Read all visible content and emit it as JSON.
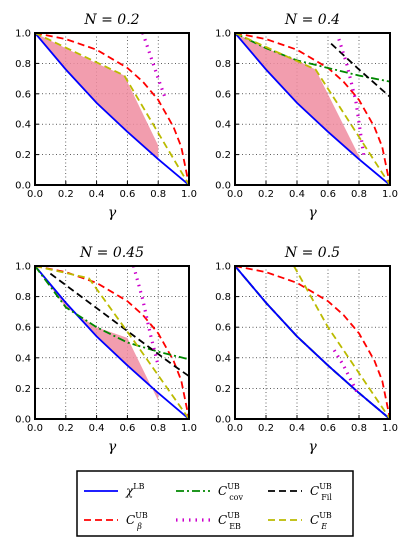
{
  "chart_data": [
    {
      "type": "line",
      "title": "N = 0.2",
      "xlabel": "γ",
      "xlim": [
        0,
        1
      ],
      "ylim": [
        0,
        1
      ],
      "xticks": [
        "0.0",
        "0.2",
        "0.4",
        "0.6",
        "0.8",
        "1.0"
      ],
      "yticks": [
        "0.0",
        "0.2",
        "0.4",
        "0.6",
        "0.8",
        "1.0"
      ],
      "grid": true,
      "series": [
        {
          "name": "χ^LB",
          "color": "#0000ff",
          "dash": "solid",
          "x": [
            0,
            0.2,
            0.4,
            0.6,
            0.8,
            1.0
          ],
          "y": [
            1.0,
            0.76,
            0.54,
            0.35,
            0.17,
            0.0
          ]
        },
        {
          "name": "C_β^UB",
          "color": "#ff0000",
          "dash": "dashed",
          "x": [
            0,
            0.2,
            0.4,
            0.6,
            0.7,
            0.8,
            0.9,
            0.95,
            1.0
          ],
          "y": [
            1.0,
            0.96,
            0.89,
            0.77,
            0.68,
            0.56,
            0.38,
            0.25,
            0.0
          ]
        },
        {
          "name": "C_EB^UB",
          "color": "#cc00cc",
          "dash": "dotted",
          "x": [
            0.7,
            0.75,
            0.8,
            0.85
          ],
          "y": [
            1.0,
            0.85,
            0.7,
            0.56
          ]
        },
        {
          "name": "C_E^UB",
          "color": "#bbbb00",
          "dash": "dashed",
          "x": [
            0.0,
            0.58,
            1.0
          ],
          "y": [
            1.0,
            0.72,
            0.0
          ]
        }
      ],
      "shaded": {
        "color": "#f08ca0",
        "upper_x": [
          0,
          0.2,
          0.4,
          0.58,
          0.8
        ],
        "upper_y": [
          1.0,
          0.9,
          0.8,
          0.72,
          0.26
        ]
      }
    },
    {
      "type": "line",
      "title": "N = 0.4",
      "xlabel": "γ",
      "xlim": [
        0,
        1
      ],
      "ylim": [
        0,
        1
      ],
      "xticks": [
        "0.0",
        "0.2",
        "0.4",
        "0.6",
        "0.8",
        "1.0"
      ],
      "yticks": [
        "0.0",
        "0.2",
        "0.4",
        "0.6",
        "0.8",
        "1.0"
      ],
      "grid": true,
      "series": [
        {
          "name": "χ^LB",
          "color": "#0000ff",
          "dash": "solid",
          "x": [
            0,
            0.2,
            0.4,
            0.6,
            0.8,
            1.0
          ],
          "y": [
            1.0,
            0.76,
            0.54,
            0.35,
            0.17,
            0.0
          ]
        },
        {
          "name": "C_β^UB",
          "color": "#ff0000",
          "dash": "dashed",
          "x": [
            0,
            0.2,
            0.4,
            0.6,
            0.7,
            0.8,
            0.9,
            0.95,
            1.0
          ],
          "y": [
            1.0,
            0.96,
            0.89,
            0.77,
            0.68,
            0.56,
            0.38,
            0.25,
            0.0
          ]
        },
        {
          "name": "C_cov^UB",
          "color": "#008800",
          "dash": "dashdot",
          "x": [
            0,
            0.2,
            0.4,
            0.6,
            0.8,
            1.0
          ],
          "y": [
            1.0,
            0.9,
            0.82,
            0.77,
            0.72,
            0.68
          ]
        },
        {
          "name": "C_Fil^UB",
          "color": "#000000",
          "dash": "dashed",
          "x": [
            0.62,
            0.8,
            1.0
          ],
          "y": [
            0.93,
            0.76,
            0.58
          ]
        },
        {
          "name": "C_EB^UB",
          "color": "#cc00cc",
          "dash": "dotted",
          "x": [
            0.67,
            0.72,
            0.78,
            0.83
          ],
          "y": [
            0.96,
            0.8,
            0.55,
            0.2
          ]
        },
        {
          "name": "C_E^UB",
          "color": "#bbbb00",
          "dash": "dashed",
          "x": [
            0.0,
            0.52,
            1.0
          ],
          "y": [
            1.0,
            0.76,
            0.0
          ]
        }
      ],
      "shaded": {
        "color": "#f08ca0",
        "upper_x": [
          0,
          0.2,
          0.4,
          0.52,
          0.82
        ],
        "upper_y": [
          1.0,
          0.9,
          0.82,
          0.76,
          0.15
        ]
      }
    },
    {
      "type": "line",
      "title": "N = 0.45",
      "xlabel": "γ",
      "xlim": [
        0,
        1
      ],
      "ylim": [
        0,
        1
      ],
      "xticks": [
        "0.0",
        "0.2",
        "0.4",
        "0.6",
        "0.8",
        "1.0"
      ],
      "yticks": [
        "0.0",
        "0.2",
        "0.4",
        "0.6",
        "0.8",
        "1.0"
      ],
      "grid": true,
      "series": [
        {
          "name": "χ^LB",
          "color": "#0000ff",
          "dash": "solid",
          "x": [
            0,
            0.2,
            0.4,
            0.6,
            0.8,
            1.0
          ],
          "y": [
            1.0,
            0.76,
            0.54,
            0.35,
            0.17,
            0.0
          ]
        },
        {
          "name": "C_β^UB",
          "color": "#ff0000",
          "dash": "dashed",
          "x": [
            0,
            0.2,
            0.4,
            0.6,
            0.7,
            0.8,
            0.9,
            0.95,
            1.0
          ],
          "y": [
            1.0,
            0.96,
            0.89,
            0.77,
            0.68,
            0.56,
            0.38,
            0.25,
            0.0
          ]
        },
        {
          "name": "C_cov^UB",
          "color": "#008800",
          "dash": "dashdot",
          "x": [
            0,
            0.2,
            0.4,
            0.6,
            0.8,
            1.0
          ],
          "y": [
            1.0,
            0.73,
            0.6,
            0.5,
            0.44,
            0.39
          ]
        },
        {
          "name": "C_Fil^UB",
          "color": "#000000",
          "dash": "dashed",
          "x": [
            0.1,
            0.3,
            0.5,
            0.7,
            0.9,
            1.0
          ],
          "y": [
            0.95,
            0.8,
            0.65,
            0.5,
            0.35,
            0.28
          ]
        },
        {
          "name": "C_EB^UB",
          "color": "#cc00cc",
          "dash": "dotted",
          "x": [
            0.64,
            0.7,
            0.75,
            0.8
          ],
          "y": [
            1.0,
            0.78,
            0.55,
            0.35
          ]
        },
        {
          "name": "C_E^UB",
          "color": "#bbbb00",
          "dash": "dashed",
          "x": [
            0.0,
            0.35,
            0.65,
            1.0
          ],
          "y": [
            1.0,
            0.92,
            0.5,
            0.0
          ]
        }
      ],
      "shaded": {
        "color": "#f08ca0",
        "upper_x": [
          0,
          0.2,
          0.4,
          0.6,
          0.8
        ],
        "upper_y": [
          1.0,
          0.73,
          0.6,
          0.53,
          0.12
        ]
      }
    },
    {
      "type": "line",
      "title": "N = 0.5",
      "xlabel": "γ",
      "xlim": [
        0,
        1
      ],
      "ylim": [
        0,
        1
      ],
      "xticks": [
        "0.0",
        "0.2",
        "0.4",
        "0.6",
        "0.8",
        "1.0"
      ],
      "yticks": [
        "0.0",
        "0.2",
        "0.4",
        "0.6",
        "0.8",
        "1.0"
      ],
      "grid": true,
      "series": [
        {
          "name": "C_Fil^UB",
          "color": "#000000",
          "dash": "dashed",
          "x": [
            0,
            0.2,
            0.4,
            0.6,
            0.8,
            1.0
          ],
          "y": [
            1.0,
            0.76,
            0.54,
            0.35,
            0.17,
            0.0
          ]
        },
        {
          "name": "C_cov^UB",
          "color": "#008800",
          "dash": "dashdot",
          "x": [
            0,
            0.2,
            0.4,
            0.6,
            0.8,
            1.0
          ],
          "y": [
            1.0,
            0.76,
            0.54,
            0.35,
            0.17,
            0.0
          ]
        },
        {
          "name": "χ^LB",
          "color": "#0000ff",
          "dash": "solid",
          "x": [
            0,
            0.2,
            0.4,
            0.6,
            0.8,
            1.0
          ],
          "y": [
            1.0,
            0.76,
            0.54,
            0.35,
            0.17,
            0.0
          ]
        },
        {
          "name": "C_β^UB",
          "color": "#ff0000",
          "dash": "dashed",
          "x": [
            0,
            0.2,
            0.4,
            0.6,
            0.7,
            0.8,
            0.9,
            0.95,
            1.0
          ],
          "y": [
            1.0,
            0.96,
            0.89,
            0.77,
            0.68,
            0.56,
            0.38,
            0.25,
            0.0
          ]
        },
        {
          "name": "C_EB^UB",
          "color": "#cc00cc",
          "dash": "dotted",
          "x": [
            0.64,
            0.7,
            0.75,
            0.8
          ],
          "y": [
            0.45,
            0.35,
            0.25,
            0.15
          ]
        },
        {
          "name": "C_E^UB",
          "color": "#bbbb00",
          "dash": "dashed",
          "x": [
            0.38,
            0.6,
            0.8,
            1.0
          ],
          "y": [
            1.0,
            0.6,
            0.3,
            0.0
          ]
        }
      ]
    }
  ],
  "legend": [
    {
      "label": "χ",
      "sup": "LB",
      "sub": "",
      "color": "#0000ff",
      "dash": "solid"
    },
    {
      "label": "C",
      "sup": "UB",
      "sub": "cov",
      "color": "#008800",
      "dash": "dashdot"
    },
    {
      "label": "C",
      "sup": "UB",
      "sub": "Fil",
      "color": "#000000",
      "dash": "dashed"
    },
    {
      "label": "C",
      "sup": "UB",
      "sub": "β",
      "color": "#ff0000",
      "dash": "dashed"
    },
    {
      "label": "C",
      "sup": "UB",
      "sub": "EB",
      "color": "#cc00cc",
      "dash": "dotted"
    },
    {
      "label": "C",
      "sup": "UB",
      "sub": "E",
      "color": "#bbbb00",
      "dash": "dashed"
    }
  ]
}
